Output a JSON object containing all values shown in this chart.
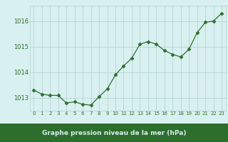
{
  "x": [
    0,
    1,
    2,
    3,
    4,
    5,
    6,
    7,
    8,
    9,
    10,
    11,
    12,
    13,
    14,
    15,
    16,
    17,
    18,
    19,
    20,
    21,
    22,
    23
  ],
  "y": [
    1013.3,
    1013.15,
    1013.1,
    1013.1,
    1012.8,
    1012.85,
    1012.75,
    1012.72,
    1013.05,
    1013.35,
    1013.9,
    1014.25,
    1014.55,
    1015.1,
    1015.2,
    1015.1,
    1014.85,
    1014.7,
    1014.6,
    1014.9,
    1015.55,
    1015.95,
    1016.0,
    1016.3
  ],
  "line_color": "#2d6e2d",
  "marker": "D",
  "marker_size": 2.5,
  "background_color": "#d9f0f0",
  "grid_color": "#b8d8d8",
  "xlabel": "Graphe pression niveau de la mer (hPa)",
  "xlabel_bg_color": "#2d6e2d",
  "xlabel_text_color": "#d9f0f0",
  "tick_label_color": "#2d6e2d",
  "ylim": [
    1012.5,
    1016.6
  ],
  "xlim": [
    -0.5,
    23.5
  ],
  "yticks": [
    1013,
    1014,
    1015,
    1016
  ],
  "xtick_labels": [
    "0",
    "1",
    "2",
    "3",
    "4",
    "5",
    "6",
    "7",
    "8",
    "9",
    "10",
    "11",
    "12",
    "13",
    "14",
    "15",
    "16",
    "17",
    "18",
    "19",
    "20",
    "21",
    "22",
    "23"
  ]
}
